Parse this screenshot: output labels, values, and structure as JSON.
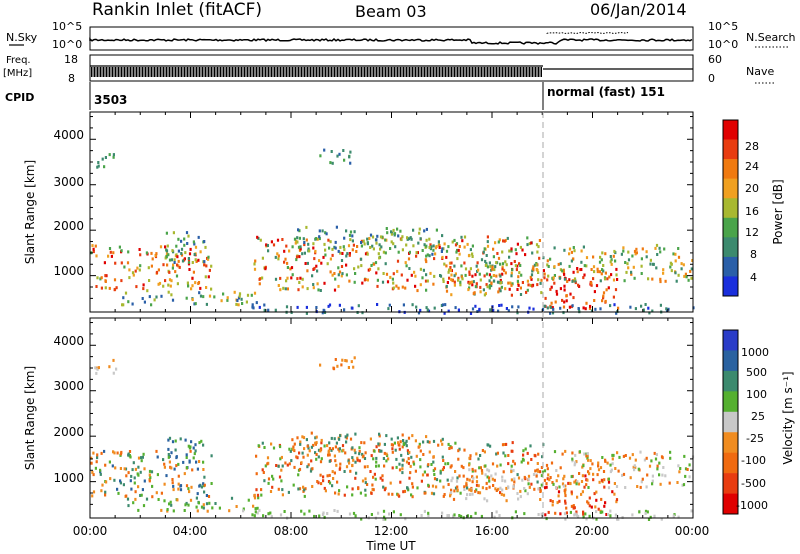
{
  "header": {
    "site": "Rankin Inlet (fitACF)",
    "beam": "Beam 03",
    "date": "06/Jan/2014"
  },
  "panels": {
    "nsky": {
      "left_label": "N.Sky",
      "right_label": "N.Search",
      "left_ticks": [
        "10^5",
        "10^0"
      ],
      "right_ticks": [
        "10^5",
        "10^0"
      ]
    },
    "freq": {
      "left_label_line1": "Freq.",
      "left_label_line2": "[MHz]",
      "left_ticks": [
        "18",
        "8"
      ],
      "right_label": "Nave",
      "right_ticks": [
        "60",
        "0"
      ]
    },
    "cpid": {
      "label": "CPID",
      "mode_1": "3503",
      "mode_2": "normal (fast) 151"
    }
  },
  "colors": {
    "power": [
      "#1a2fdc",
      "#2a5fa8",
      "#3c8a6e",
      "#4aa44a",
      "#a8b830",
      "#f0a020",
      "#f07a10",
      "#e83c10",
      "#e00000"
    ],
    "velocity": [
      "#2a3cc8",
      "#2a62a0",
      "#3c8a6e",
      "#55b030",
      "#c8c8c8",
      "#f08c20",
      "#f06a10",
      "#e83c10",
      "#e00000"
    ],
    "dashed_line": "#aaaaaa"
  },
  "chart_data": [
    {
      "type": "heatmap",
      "name": "power",
      "ylabel": "Slant Range [km]",
      "xlabel": "Time UT",
      "x_ticks": [
        "00:00",
        "04:00",
        "08:00",
        "12:00",
        "16:00",
        "20:00",
        "00:00"
      ],
      "y_ticks": [
        "1000",
        "2000",
        "3000",
        "4000"
      ],
      "ylim": [
        200,
        4600
      ],
      "colorbar_label": "Power [dB]",
      "colorbar_ticks": [
        "28",
        "24",
        "20",
        "16",
        "12",
        "8",
        "4"
      ],
      "grid": false
    },
    {
      "type": "heatmap",
      "name": "velocity",
      "ylabel": "Slant Range [km]",
      "xlabel": "Time UT",
      "x_ticks": [
        "00:00",
        "04:00",
        "08:00",
        "12:00",
        "16:00",
        "20:00",
        "00:00"
      ],
      "y_ticks": [
        "1000",
        "2000",
        "3000",
        "4000"
      ],
      "ylim": [
        200,
        4600
      ],
      "colorbar_label": "Velocity [m s⁻¹]",
      "colorbar_ticks": [
        "1000",
        "500",
        "100",
        "25",
        "-25",
        "-100",
        "-500",
        "-1000"
      ],
      "grid": false
    }
  ],
  "xaxis": {
    "label": "Time UT",
    "ticks": [
      "00:00",
      "04:00",
      "08:00",
      "12:00",
      "16:00",
      "20:00",
      "00:00"
    ],
    "mode_change_time": "18:00"
  }
}
